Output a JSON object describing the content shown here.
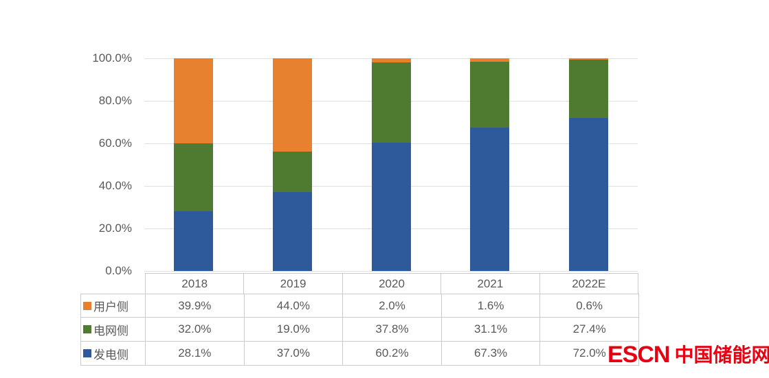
{
  "chart_data": {
    "type": "bar",
    "variant": "stacked-100",
    "categories": [
      "2018",
      "2019",
      "2020",
      "2021",
      "2022E"
    ],
    "series": [
      {
        "name": "用户侧",
        "color": "#e8812f",
        "values": [
          39.9,
          44.0,
          2.0,
          1.6,
          0.6
        ]
      },
      {
        "name": "电网侧",
        "color": "#4e7b2f",
        "values": [
          32.0,
          19.0,
          37.8,
          31.1,
          27.4
        ]
      },
      {
        "name": "发电侧",
        "color": "#2e5a9c",
        "values": [
          28.1,
          37.0,
          60.2,
          67.3,
          72.0
        ]
      }
    ],
    "title": "",
    "xlabel": "",
    "ylabel": "",
    "ylim": [
      0,
      100
    ],
    "y_tick_labels": [
      "100.0%",
      "80.0%",
      "60.0%",
      "40.0%",
      "20.0%",
      "0.0%"
    ],
    "grid": true,
    "gridline_color": "#e0e0e0",
    "legend_position": "data-table-left"
  },
  "table": {
    "column_headers": [
      "2018",
      "2019",
      "2020",
      "2021",
      "2022E"
    ],
    "rows": [
      {
        "label": "用户侧",
        "swatch_color": "#e8812f",
        "values": [
          "39.9%",
          "44.0%",
          "2.0%",
          "1.6%",
          "0.6%"
        ]
      },
      {
        "label": "电网侧",
        "swatch_color": "#4e7b2f",
        "values": [
          "32.0%",
          "19.0%",
          "37.8%",
          "31.1%",
          "27.4%"
        ]
      },
      {
        "label": "发电侧",
        "swatch_color": "#2e5a9c",
        "values": [
          "28.1%",
          "37.0%",
          "60.2%",
          "67.3%",
          "72.0%"
        ]
      }
    ]
  },
  "watermark": {
    "latin": "ESCN",
    "cjk": "中国储能网",
    "color": "#e60012"
  }
}
